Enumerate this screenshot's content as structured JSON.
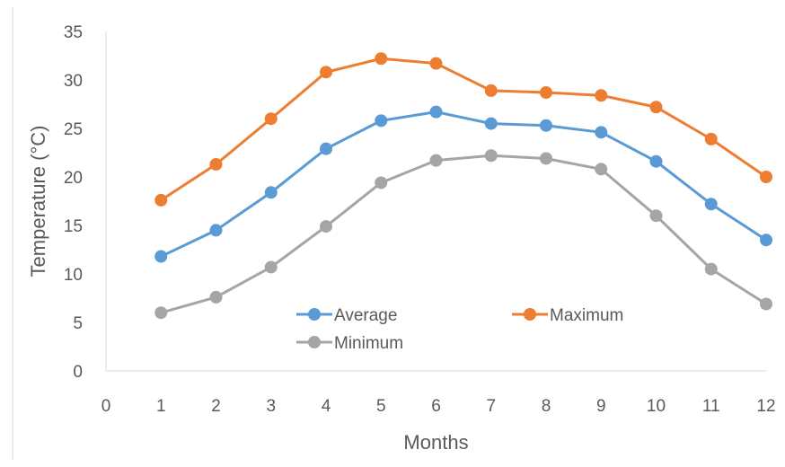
{
  "chart_data": {
    "type": "line",
    "title": "",
    "xlabel": "Months",
    "ylabel": "Temperature (°C)",
    "xlim": [
      0,
      12
    ],
    "ylim": [
      0,
      35
    ],
    "x_ticks": [
      0,
      1,
      2,
      3,
      4,
      5,
      6,
      7,
      8,
      9,
      10,
      11,
      12
    ],
    "y_ticks": [
      0,
      5,
      10,
      15,
      20,
      25,
      30,
      35
    ],
    "grid": false,
    "legend_position": "center",
    "x": [
      1,
      2,
      3,
      4,
      5,
      6,
      7,
      8,
      9,
      10,
      11,
      12
    ],
    "series": [
      {
        "name": "Average",
        "color": "#5B9BD5",
        "values": [
          11.8,
          14.5,
          18.4,
          22.9,
          25.8,
          26.7,
          25.5,
          25.3,
          24.6,
          21.6,
          17.2,
          13.5
        ]
      },
      {
        "name": "Maximum",
        "color": "#ED7D31",
        "values": [
          17.6,
          21.3,
          26.0,
          30.8,
          32.2,
          31.7,
          28.9,
          28.7,
          28.4,
          27.2,
          23.9,
          20.0
        ]
      },
      {
        "name": "Minimum",
        "color": "#A5A5A5",
        "values": [
          6.0,
          7.6,
          10.7,
          14.9,
          19.4,
          21.7,
          22.2,
          21.9,
          20.8,
          16.0,
          10.5,
          6.9
        ]
      }
    ]
  }
}
